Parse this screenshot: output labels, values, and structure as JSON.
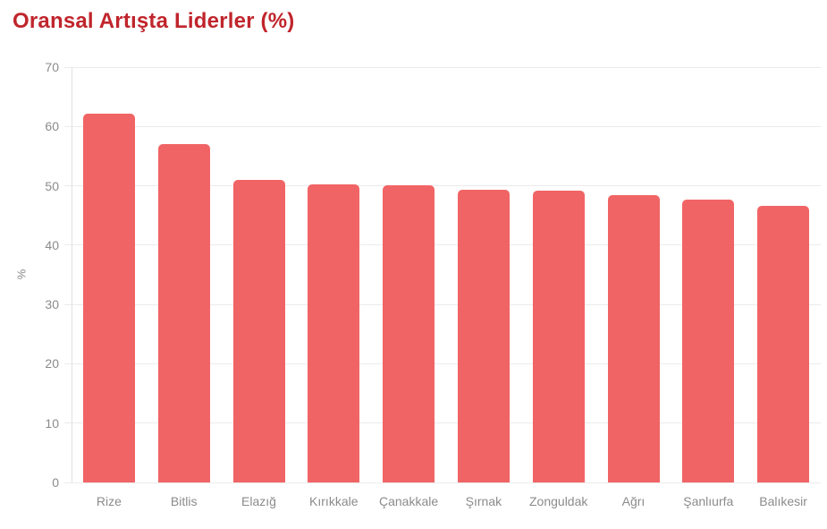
{
  "page": {
    "background": "#ffffff"
  },
  "colors": {
    "bar": "#f16465",
    "title": "#c0252c",
    "axis_label": "#8b8b8b",
    "gridline": "#ebebeb",
    "axis_line": "#e2e2e2"
  },
  "chart_data": {
    "type": "bar",
    "title": "Oransal Artışta Liderler (%)",
    "categories": [
      "Rize",
      "Bitlis",
      "Elazığ",
      "Kırıkkale",
      "Çanakkale",
      "Şırnak",
      "Zonguldak",
      "Ağrı",
      "Şanlıurfa",
      "Balıkesir"
    ],
    "values": [
      62.2,
      57.1,
      51.0,
      50.2,
      50.1,
      49.3,
      49.2,
      48.4,
      47.6,
      46.6
    ],
    "xlabel": "",
    "ylabel": "%",
    "ylim": [
      0,
      70
    ],
    "y_tick_step": 10,
    "y_tick_labels": [
      "0",
      "10",
      "20",
      "30",
      "40",
      "50",
      "60",
      "70"
    ],
    "grid": true,
    "legend": false,
    "bar_corner_radius": 5
  }
}
